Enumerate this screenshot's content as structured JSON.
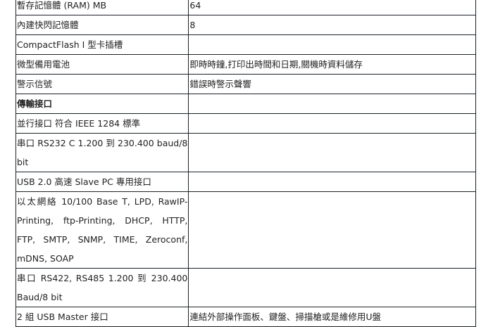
{
  "rows": [
    {
      "label": "暫存記憶體 (RAM) MB",
      "value": "64"
    },
    {
      "label": "內建快閃記憶體",
      "value": "8"
    },
    {
      "label": "CompactFlash I 型卡插槽",
      "value": ""
    },
    {
      "label": "微型備用電池",
      "value": "即時時鐘,打印出時間和日期,關機時資料儲存"
    },
    {
      "label": "警示信號",
      "value": "錯誤時警示聲響"
    },
    {
      "label": "傳輸接口",
      "value": "",
      "section": true
    },
    {
      "label": "並行接口 符合 IEEE 1284 標準",
      "value": ""
    },
    {
      "label": "串口 RS232 C 1.200 到 230.400 baud/8 bit",
      "value": ""
    },
    {
      "label": "USB 2.0 高速 Slave PC 專用接口",
      "value": ""
    },
    {
      "label": "以太網絡 10/100 Base T, LPD, RawIP-Printing, ftp-Printing, DHCP, HTTP, FTP, SMTP, SNMP, TIME, Zeroconf, mDNS, SOAP",
      "value": ""
    },
    {
      "label": "串口 RS422, RS485 1.200 到 230.400 Baud/8 bit",
      "value": ""
    },
    {
      "label": "2 組 USB Master 接口",
      "value": "連結外部操作面板、鍵盤、掃描槍或是維修用U盤"
    }
  ]
}
